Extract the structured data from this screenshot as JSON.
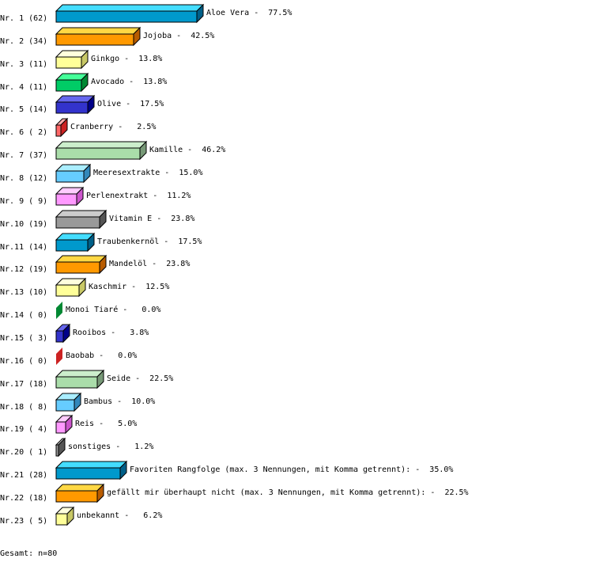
{
  "chart_data": {
    "type": "bar",
    "orientation": "horizontal",
    "style": "3d",
    "grid": false,
    "categories": [
      "Aloe Vera",
      "Jojoba",
      "Ginkgo",
      "Avocado",
      "Olive",
      "Cranberry",
      "Kamille",
      "Meeresextrakte",
      "Perlenextrakt",
      "Vitamin E",
      "Traubenkernöl",
      "Mandelöl",
      "Kaschmir",
      "Monoi Tiaré",
      "Rooibos",
      "Baobab",
      "Seide",
      "Bambus",
      "Reis",
      "sonstiges",
      "Favoriten Rangfolge (max. 3 Nennungen, mit Komma getrennt):",
      "gefällt mir überhaupt nicht (max. 3 Nennungen, mit Komma getrennt):",
      "unbekannt"
    ],
    "row_labels": [
      "Nr. 1 (62)",
      "Nr. 2 (34)",
      "Nr. 3 (11)",
      "Nr. 4 (11)",
      "Nr. 5 (14)",
      "Nr. 6 ( 2)",
      "Nr. 7 (37)",
      "Nr. 8 (12)",
      "Nr. 9 ( 9)",
      "Nr.10 (19)",
      "Nr.11 (14)",
      "Nr.12 (19)",
      "Nr.13 (10)",
      "Nr.14 ( 0)",
      "Nr.15 ( 3)",
      "Nr.16 ( 0)",
      "Nr.17 (18)",
      "Nr.18 ( 8)",
      "Nr.19 ( 4)",
      "Nr.20 ( 1)",
      "Nr.21 (28)",
      "Nr.22 (18)",
      "Nr.23 ( 5)"
    ],
    "counts": [
      62,
      34,
      11,
      11,
      14,
      2,
      37,
      12,
      9,
      19,
      14,
      19,
      10,
      0,
      3,
      0,
      18,
      8,
      4,
      1,
      28,
      18,
      5
    ],
    "values": [
      77.5,
      42.5,
      13.8,
      13.8,
      17.5,
      2.5,
      46.2,
      15.0,
      11.2,
      23.8,
      17.5,
      23.8,
      12.5,
      0.0,
      3.8,
      0.0,
      22.5,
      10.0,
      5.0,
      1.2,
      35.0,
      22.5,
      6.2
    ],
    "value_labels": [
      "77.5%",
      "42.5%",
      "13.8%",
      "13.8%",
      "17.5%",
      "2.5%",
      "46.2%",
      "15.0%",
      "11.2%",
      "23.8%",
      "17.5%",
      "23.8%",
      "12.5%",
      "0.0%",
      "3.8%",
      "0.0%",
      "22.5%",
      "10.0%",
      "5.0%",
      "1.2%",
      "35.0%",
      "22.5%",
      "6.2%"
    ],
    "palette": [
      {
        "front": "#0099cc",
        "top": "#44ddff",
        "side": "#005f88"
      },
      {
        "front": "#ff9900",
        "top": "#ffd844",
        "side": "#b85c00"
      },
      {
        "front": "#ffff99",
        "top": "#ffffdd",
        "side": "#c8c866"
      },
      {
        "front": "#00cc66",
        "top": "#44ff99",
        "side": "#008833"
      },
      {
        "front": "#3333cc",
        "top": "#6666ee",
        "side": "#000088"
      },
      {
        "front": "#ff6666",
        "top": "#ffaaaa",
        "side": "#cc2222"
      },
      {
        "front": "#aaddaa",
        "top": "#cceecc",
        "side": "#779977"
      },
      {
        "front": "#66ccff",
        "top": "#aaeeff",
        "side": "#3388bb"
      },
      {
        "front": "#ff99ff",
        "top": "#ffccff",
        "side": "#cc55cc"
      },
      {
        "front": "#999999",
        "top": "#cccccc",
        "side": "#555555"
      }
    ],
    "footer": "Gesamt: n=80"
  }
}
